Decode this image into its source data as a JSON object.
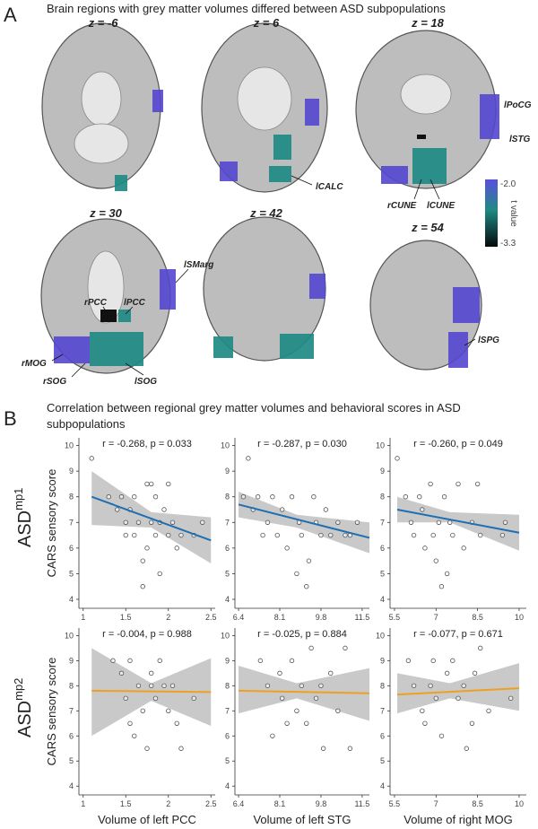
{
  "panel_a": {
    "label": "A",
    "title": "Brain regions with grey matter volumes differed between ASD subpopulations",
    "slices": [
      "z = -6",
      "z = 6",
      "z = 18",
      "z = 30",
      "z = 42",
      "z = 54"
    ],
    "regions": [
      "lPoCG",
      "lSTG",
      "lCALC",
      "rCUNE",
      "lCUNE",
      "lSMarg",
      "rPCC",
      "lPCC",
      "rMOG",
      "rSOG",
      "lSOG",
      "lSPG"
    ],
    "colorbar": {
      "ticks": [
        "-2.0",
        "-3.3"
      ],
      "label": "t value"
    }
  },
  "panel_b": {
    "label": "B",
    "title_lines": [
      "Correlation between regional grey matter volumes and behavioral scores in ASD",
      "subpopulations"
    ],
    "rows": [
      {
        "label": "ASD",
        "superscript": "mp1"
      },
      {
        "label": "ASD",
        "superscript": "mp2"
      }
    ]
  },
  "chart_data": [
    {
      "type": "scatter",
      "annotation": "r = -0.268, p = 0.033",
      "ylabel": "CARS sensory score",
      "x": [
        1.1,
        1.3,
        1.4,
        1.45,
        1.5,
        1.5,
        1.55,
        1.6,
        1.6,
        1.65,
        1.7,
        1.7,
        1.75,
        1.75,
        1.8,
        1.8,
        1.85,
        1.85,
        1.9,
        1.9,
        1.95,
        2.0,
        2.0,
        2.05,
        2.1,
        2.15,
        2.3,
        2.4
      ],
      "y": [
        9.5,
        8,
        7.5,
        8,
        7,
        6.5,
        7.5,
        8,
        6.5,
        7,
        5.5,
        4.5,
        8.5,
        6,
        7,
        8.5,
        6.5,
        8,
        7,
        5,
        7.5,
        8.5,
        6.5,
        7,
        6,
        6.5,
        6.5,
        7
      ],
      "fit": {
        "x": [
          1.1,
          2.5
        ],
        "y": [
          8.0,
          6.3
        ],
        "color": "#1f6fb2"
      },
      "ci_band": {
        "x": [
          1.1,
          1.8,
          2.5
        ],
        "lower": [
          6.9,
          6.8,
          5.4
        ],
        "upper": [
          9.0,
          7.4,
          7.2
        ],
        "color": "#c9c9c9"
      },
      "xlim": [
        0.95,
        2.55
      ],
      "xticks": [
        1,
        1.5,
        2,
        2.5
      ],
      "ylim": [
        3.65,
        10.3
      ],
      "yticks": [
        4,
        5,
        6,
        7,
        8,
        9,
        10
      ]
    },
    {
      "type": "scatter",
      "annotation": "r = -0.287, p = 0.030",
      "x": [
        6.8,
        6.6,
        7.0,
        7.2,
        7.4,
        7.6,
        7.8,
        8.0,
        8.2,
        8.4,
        8.6,
        8.8,
        8.9,
        9.0,
        9.2,
        9.3,
        9.5,
        9.6,
        9.8,
        10.0,
        10.2,
        10.5,
        10.8,
        11.0,
        11.3
      ],
      "y": [
        9.5,
        8,
        7.5,
        8,
        6.5,
        7,
        8,
        6.5,
        7.5,
        6,
        8,
        5,
        7,
        6.5,
        4.5,
        5.5,
        8,
        7,
        6.5,
        7.5,
        6.5,
        7,
        6.5,
        6.5,
        7
      ],
      "fit": {
        "x": [
          6.4,
          11.8
        ],
        "y": [
          7.7,
          6.4
        ],
        "color": "#1f6fb2"
      },
      "ci_band": {
        "x": [
          6.4,
          8.8,
          11.8
        ],
        "lower": [
          7.2,
          6.8,
          5.8
        ],
        "upper": [
          8.2,
          7.3,
          7.0
        ],
        "color": "#c9c9c9"
      },
      "xlim": [
        6.25,
        11.8
      ],
      "xticks": [
        6.4,
        8.1,
        9.8,
        11.5
      ],
      "ylim": [
        3.65,
        10.3
      ],
      "yticks": [
        4,
        5,
        6,
        7,
        8,
        9,
        10
      ]
    },
    {
      "type": "scatter",
      "annotation": "r = -0.260, p = 0.049",
      "x": [
        5.6,
        5.9,
        6.1,
        6.2,
        6.4,
        6.5,
        6.6,
        6.8,
        6.9,
        7.0,
        7.1,
        7.2,
        7.3,
        7.4,
        7.5,
        7.6,
        7.8,
        8.0,
        8.3,
        8.5,
        8.6,
        9.4,
        9.5
      ],
      "y": [
        9.5,
        8,
        7,
        6.5,
        8,
        7.5,
        6,
        8.5,
        6.5,
        5.5,
        7,
        4.5,
        8,
        5,
        7,
        6.5,
        8.5,
        6,
        7,
        8.5,
        6.5,
        6.5,
        7
      ],
      "fit": {
        "x": [
          5.6,
          10
        ],
        "y": [
          7.5,
          6.6
        ],
        "color": "#1f6fb2"
      },
      "ci_band": {
        "x": [
          5.6,
          7.5,
          10
        ],
        "lower": [
          7.0,
          7.0,
          5.9
        ],
        "upper": [
          8.0,
          7.4,
          7.3
        ],
        "color": "#c9c9c9"
      },
      "xlim": [
        5.34,
        10.26
      ],
      "xticks": [
        5.5,
        7,
        8.5,
        10
      ],
      "ylim": [
        3.65,
        10.3
      ],
      "yticks": [
        4,
        5,
        6,
        7,
        8,
        9,
        10
      ]
    },
    {
      "type": "scatter",
      "annotation": "r = -0.004, p = 0.988",
      "ylabel": "CARS sensory score",
      "xlabel": "Volume of left PCC",
      "x": [
        1.35,
        1.45,
        1.5,
        1.55,
        1.55,
        1.6,
        1.65,
        1.7,
        1.75,
        1.8,
        1.8,
        1.85,
        1.9,
        1.95,
        2.0,
        2.05,
        2.1,
        2.15,
        2.3
      ],
      "y": [
        9,
        8.5,
        7.5,
        9,
        6.5,
        6,
        8,
        7,
        5.5,
        8.5,
        8,
        7.5,
        9,
        8,
        7,
        8,
        6.5,
        5.5,
        7.5
      ],
      "fit": {
        "x": [
          1.1,
          2.5
        ],
        "y": [
          7.8,
          7.75
        ],
        "color": "#f0a020"
      },
      "ci_band": {
        "x": [
          1.1,
          1.8,
          2.5
        ],
        "lower": [
          6.0,
          7.4,
          6.4
        ],
        "upper": [
          9.5,
          8.1,
          9.1
        ],
        "color": "#c9c9c9"
      },
      "xlim": [
        0.95,
        2.55
      ],
      "xticks": [
        1,
        1.5,
        2,
        2.5
      ],
      "ylim": [
        3.65,
        10.3
      ],
      "yticks": [
        4,
        5,
        6,
        7,
        8,
        9,
        10
      ]
    },
    {
      "type": "scatter",
      "annotation": "r = -0.025, p = 0.884",
      "xlabel": "Volume of left STG",
      "x": [
        7.3,
        7.6,
        7.8,
        8.1,
        8.2,
        8.4,
        8.6,
        8.8,
        9.0,
        9.2,
        9.4,
        9.6,
        9.8,
        9.9,
        10.2,
        10.5,
        10.8,
        11.0
      ],
      "y": [
        9,
        8,
        6,
        8.5,
        7.5,
        6.5,
        9,
        7,
        8,
        6.5,
        9.5,
        7.5,
        8,
        5.5,
        8.5,
        7,
        9.5,
        5.5
      ],
      "fit": {
        "x": [
          6.4,
          11.8
        ],
        "y": [
          7.8,
          7.7
        ],
        "color": "#f0a020"
      },
      "ci_band": {
        "x": [
          6.4,
          8.8,
          11.8
        ],
        "lower": [
          6.9,
          7.5,
          6.6
        ],
        "upper": [
          8.8,
          8.1,
          8.7
        ],
        "color": "#c9c9c9"
      },
      "xlim": [
        6.25,
        11.8
      ],
      "xticks": [
        6.4,
        8.1,
        9.8,
        11.5
      ],
      "ylim": [
        3.65,
        10.3
      ],
      "yticks": [
        4,
        5,
        6,
        7,
        8,
        9,
        10
      ]
    },
    {
      "type": "scatter",
      "annotation": "r = -0.077, p = 0.671",
      "xlabel": "Volume of right MOG",
      "x": [
        6.0,
        6.2,
        6.5,
        6.6,
        6.8,
        6.9,
        7.0,
        7.2,
        7.4,
        7.6,
        7.8,
        8.0,
        8.1,
        8.3,
        8.4,
        8.6,
        8.9,
        9.7
      ],
      "y": [
        9,
        8,
        7,
        6.5,
        8,
        9,
        7.5,
        6,
        8.5,
        9,
        7.5,
        8,
        5.5,
        6.5,
        8.5,
        9.5,
        7,
        7.5
      ],
      "fit": {
        "x": [
          5.6,
          10
        ],
        "y": [
          7.65,
          7.9
        ],
        "color": "#f0a020"
      },
      "ci_band": {
        "x": [
          5.6,
          7.5,
          10
        ],
        "lower": [
          6.9,
          7.5,
          7.0
        ],
        "upper": [
          8.5,
          8.1,
          8.9
        ],
        "color": "#c9c9c9"
      },
      "xlim": [
        5.34,
        10.26
      ],
      "xticks": [
        5.5,
        7,
        8.5,
        10
      ],
      "ylim": [
        3.65,
        10.3
      ],
      "yticks": [
        4,
        5,
        6,
        7,
        8,
        9,
        10
      ]
    }
  ]
}
